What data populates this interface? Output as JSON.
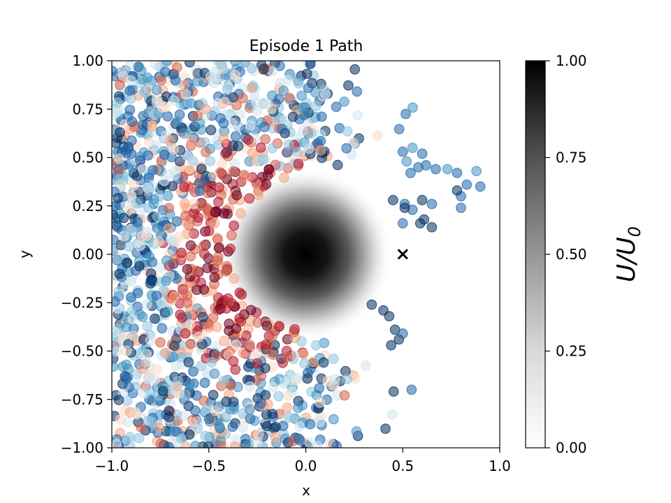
{
  "chart_data": {
    "type": "scatter",
    "title": "Episode 1 Path",
    "xlabel": "x",
    "ylabel": "y",
    "xlim": [
      -1.0,
      1.0
    ],
    "ylim": [
      -1.0,
      1.0
    ],
    "x_ticks": [
      "−1.0",
      "−0.5",
      "0.0",
      "0.5",
      "1.0"
    ],
    "y_ticks": [
      "1.00",
      "0.75",
      "0.50",
      "0.25",
      "0.00",
      "−0.25",
      "−0.50",
      "−0.75",
      "−1.00"
    ],
    "background_field": {
      "description_kind": "gaussian potential",
      "center": [
        0.0,
        0.0
      ],
      "sigma": 0.14,
      "cmap": "Greys"
    },
    "target_marker": {
      "x": 0.5,
      "y": 0.0,
      "symbol": "×"
    },
    "point_cmap": "RdBu",
    "point_alpha": 0.55,
    "series": [
      {
        "values": [
          [
            0.5,
            0.53
          ],
          [
            0.55,
            0.55
          ],
          [
            0.6,
            0.52
          ],
          [
            0.62,
            0.46
          ],
          [
            0.67,
            0.44
          ],
          [
            0.73,
            0.44
          ],
          [
            0.78,
            0.42
          ],
          [
            0.83,
            0.36
          ],
          [
            0.88,
            0.43
          ],
          [
            0.9,
            0.35
          ],
          [
            0.58,
            0.45
          ],
          [
            0.54,
            0.42
          ],
          [
            0.52,
            0.48
          ]
        ],
        "tone": 0.8
      },
      {
        "values": [
          [
            0.45,
            0.28
          ],
          [
            0.51,
            0.26
          ],
          [
            0.55,
            0.23
          ],
          [
            0.59,
            0.16
          ],
          [
            0.6,
            0.28
          ],
          [
            0.65,
            0.26
          ],
          [
            0.65,
            0.14
          ],
          [
            0.61,
            0.18
          ],
          [
            0.5,
            0.16
          ],
          [
            0.51,
            0.24
          ],
          [
            0.8,
            0.3
          ],
          [
            0.8,
            0.24
          ],
          [
            0.78,
            0.33
          ]
        ],
        "tone": 0.92
      },
      {
        "values": [
          [
            0.34,
            -0.26
          ],
          [
            0.4,
            -0.29
          ],
          [
            0.43,
            -0.32
          ],
          [
            0.46,
            -0.39
          ],
          [
            0.48,
            -0.44
          ],
          [
            0.5,
            -0.41
          ],
          [
            0.44,
            -0.47
          ]
        ],
        "tone": 0.95
      }
    ],
    "colorbar": {
      "label": "U/U",
      "label_sub": "0",
      "range": [
        0.0,
        1.0
      ],
      "ticks": [
        "1.00",
        "0.75",
        "0.50",
        "0.25",
        "0.00"
      ]
    }
  }
}
